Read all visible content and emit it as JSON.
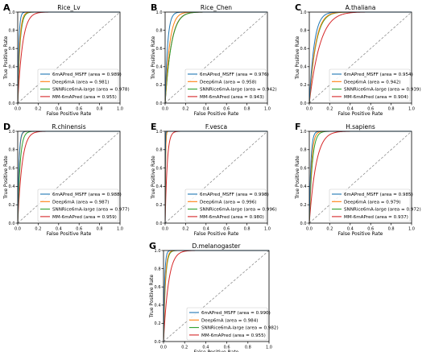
{
  "series_colors": [
    "#1f77b4",
    "#ff7f0e",
    "#2ca02c",
    "#d62728"
  ],
  "diagonal_color": "#808080",
  "chart_data": [
    {
      "type": "line",
      "panel": "A",
      "title": "Rice_Lv",
      "xlabel": "False Positive Rate",
      "ylabel": "True Positive Rate",
      "xlim": [
        0.0,
        1.0
      ],
      "ylim": [
        0.0,
        1.0
      ],
      "x_ticks": [
        "0.0",
        "0.2",
        "0.4",
        "0.6",
        "0.8",
        "1.0"
      ],
      "y_ticks": [
        "0.0",
        "0.2",
        "0.4",
        "0.6",
        "0.8",
        "1.0"
      ],
      "legend_position": "lower-right",
      "series": [
        {
          "name": "6mAPred_MSFF (area = 0.989)",
          "auc": 0.989
        },
        {
          "name": "Deep6mA (area = 0.981)",
          "auc": 0.981
        },
        {
          "name": "SNNRice6mA-large (area = 0.978)",
          "auc": 0.978
        },
        {
          "name": "MM-6mAPred (area = 0.955)",
          "auc": 0.955
        }
      ]
    },
    {
      "type": "line",
      "panel": "B",
      "title": "Rice_Chen",
      "xlabel": "False Positive Rate",
      "ylabel": "True Positive Rate",
      "xlim": [
        0.0,
        1.0
      ],
      "ylim": [
        0.0,
        1.0
      ],
      "x_ticks": [
        "0.0",
        "0.2",
        "0.4",
        "0.6",
        "0.8",
        "1.0"
      ],
      "y_ticks": [
        "0.0",
        "0.2",
        "0.4",
        "0.6",
        "0.8",
        "1.0"
      ],
      "legend_position": "lower-right",
      "series": [
        {
          "name": "6mAPred_MSFF (area = 0.976)",
          "auc": 0.976
        },
        {
          "name": "Deep6mA (area = 0.958)",
          "auc": 0.958
        },
        {
          "name": "SNNRice6mA-large (area = 0.942)",
          "auc": 0.942
        },
        {
          "name": "MM-6mAPred (area = 0.943)",
          "auc": 0.943
        }
      ]
    },
    {
      "type": "line",
      "panel": "C",
      "title": "A.thaliana",
      "xlabel": "False Positive Rate",
      "ylabel": "True Positive Rate",
      "xlim": [
        0.0,
        1.0
      ],
      "ylim": [
        0.0,
        1.0
      ],
      "x_ticks": [
        "0.0",
        "0.2",
        "0.4",
        "0.6",
        "0.8",
        "1.0"
      ],
      "y_ticks": [
        "0.0",
        "0.2",
        "0.4",
        "0.6",
        "0.8",
        "1.0"
      ],
      "legend_position": "lower-right",
      "series": [
        {
          "name": "6mAPred_MSFF (area = 0.954)",
          "auc": 0.954
        },
        {
          "name": "Deep6mA (area = 0.942)",
          "auc": 0.942
        },
        {
          "name": "SNNRice6mA-large (area = 0.939)",
          "auc": 0.939
        },
        {
          "name": "MM-6mAPred (area = 0.904)",
          "auc": 0.904
        }
      ]
    },
    {
      "type": "line",
      "panel": "D",
      "title": "R.chinensis",
      "xlabel": "False Positive Rate",
      "ylabel": "True Positive Rate",
      "xlim": [
        0.0,
        1.0
      ],
      "ylim": [
        0.0,
        1.0
      ],
      "x_ticks": [
        "0.0",
        "0.2",
        "0.4",
        "0.6",
        "0.8",
        "1.0"
      ],
      "y_ticks": [
        "0.0",
        "0.2",
        "0.4",
        "0.6",
        "0.8",
        "1.0"
      ],
      "legend_position": "lower-right",
      "series": [
        {
          "name": "6mAPred_MSFF (area = 0.988)",
          "auc": 0.988
        },
        {
          "name": "Deep6mA (area = 0.987)",
          "auc": 0.987
        },
        {
          "name": "SNNRice6mA-large (area = 0.977)",
          "auc": 0.977
        },
        {
          "name": "MM-6mAPred (area = 0.959)",
          "auc": 0.959
        }
      ]
    },
    {
      "type": "line",
      "panel": "E",
      "title": "F.vesca",
      "xlabel": "False Positive Rate",
      "ylabel": "True Positive Rate",
      "xlim": [
        0.0,
        1.0
      ],
      "ylim": [
        0.0,
        1.0
      ],
      "x_ticks": [
        "0.0",
        "0.2",
        "0.4",
        "0.6",
        "0.8",
        "1.0"
      ],
      "y_ticks": [
        "0.0",
        "0.2",
        "0.4",
        "0.6",
        "0.8",
        "1.0"
      ],
      "legend_position": "lower-right",
      "series": [
        {
          "name": "6mAPred_MSFF (area = 0.998)",
          "auc": 0.998
        },
        {
          "name": "Deep6mA (area = 0.996)",
          "auc": 0.996
        },
        {
          "name": "SNNRice6mA-large (area = 0.996)",
          "auc": 0.996
        },
        {
          "name": "MM-6mAPred (area = 0.980)",
          "auc": 0.98
        }
      ]
    },
    {
      "type": "line",
      "panel": "F",
      "title": "H.sapiens",
      "xlabel": "False Positive Rate",
      "ylabel": "True Positive Rate",
      "xlim": [
        0.0,
        1.0
      ],
      "ylim": [
        0.0,
        1.0
      ],
      "x_ticks": [
        "0.0",
        "0.2",
        "0.4",
        "0.6",
        "0.8",
        "1.0"
      ],
      "y_ticks": [
        "0.0",
        "0.2",
        "0.4",
        "0.6",
        "0.8",
        "1.0"
      ],
      "legend_position": "lower-right",
      "series": [
        {
          "name": "6mAPred_MSFF (area = 0.985)",
          "auc": 0.985
        },
        {
          "name": "Deep6mA (area = 0.979)",
          "auc": 0.979
        },
        {
          "name": "SNNRice6mA-large (area = 0.972)",
          "auc": 0.972
        },
        {
          "name": "MM-6mAPred (area = 0.937)",
          "auc": 0.937
        }
      ]
    },
    {
      "type": "line",
      "panel": "G",
      "title": "D.melanogaster",
      "xlabel": "False Positive Rate",
      "ylabel": "True Positive Rate",
      "xlim": [
        0.0,
        1.0
      ],
      "ylim": [
        0.0,
        1.0
      ],
      "x_ticks": [
        "0.0",
        "0.2",
        "0.4",
        "0.6",
        "0.8",
        "1.0"
      ],
      "y_ticks": [
        "0.0",
        "0.2",
        "0.4",
        "0.6",
        "0.8",
        "1.0"
      ],
      "legend_position": "lower-right",
      "series": [
        {
          "name": "6mAPred_MSFF (area = 0.990)",
          "auc": 0.99
        },
        {
          "name": "Deep6mA (area = 0.984)",
          "auc": 0.984
        },
        {
          "name": "SNNRice6mA-large (area = 0.982)",
          "auc": 0.982
        },
        {
          "name": "MM-6mAPred (area = 0.955)",
          "auc": 0.955
        }
      ]
    }
  ]
}
